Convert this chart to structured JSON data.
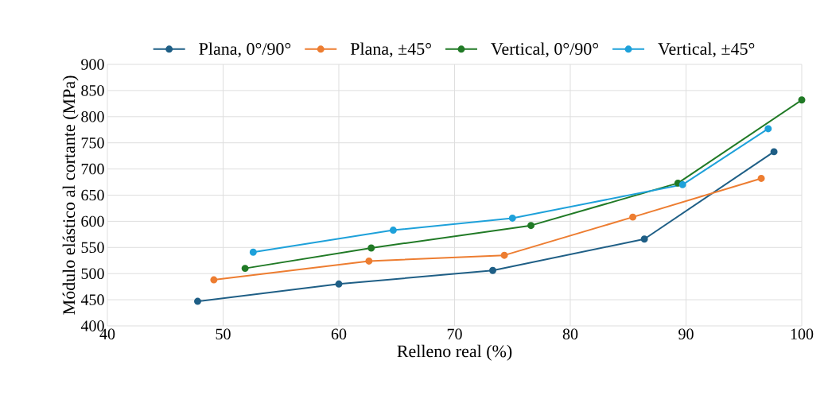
{
  "chart_data": {
    "type": "line",
    "xlabel": "Relleno real (%)",
    "ylabel": "Módulo elástico al cortante (MPa)",
    "xlim": [
      40,
      100
    ],
    "xticks": [
      40,
      50,
      60,
      70,
      80,
      90,
      100
    ],
    "ylim": [
      400,
      900
    ],
    "yticks": [
      400,
      450,
      500,
      550,
      600,
      650,
      700,
      750,
      800,
      850,
      900
    ],
    "grid": true,
    "legend": "top",
    "marker": "circle",
    "line_style": "solid",
    "series": [
      {
        "name": "Plana, 0°/90°",
        "color": "#1f5f86",
        "x": [
          47.8,
          60.0,
          73.3,
          86.4,
          97.6
        ],
        "values": [
          447,
          480,
          506,
          566,
          733
        ]
      },
      {
        "name": "Plana, ±45°",
        "color": "#ed7d31",
        "x": [
          49.2,
          62.6,
          74.3,
          85.4,
          96.5
        ],
        "values": [
          488,
          524,
          535,
          608,
          682
        ]
      },
      {
        "name": "Vertical, 0°/90°",
        "color": "#217a26",
        "x": [
          51.9,
          62.8,
          76.6,
          89.3,
          100.0
        ],
        "values": [
          510,
          549,
          592,
          673,
          832
        ]
      },
      {
        "name": "Vertical, ±45°",
        "color": "#1ea1da",
        "x": [
          52.6,
          64.7,
          75.0,
          89.7,
          97.1
        ],
        "values": [
          541,
          583,
          606,
          670,
          777
        ]
      }
    ]
  }
}
